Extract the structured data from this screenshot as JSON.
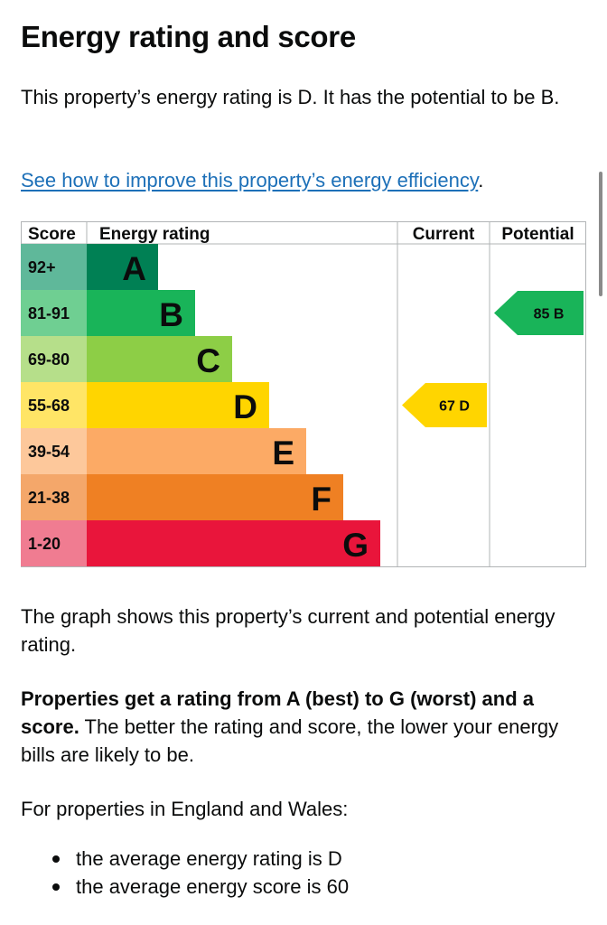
{
  "heading": "Energy rating and score",
  "intro": "This property’s energy rating is D. It has the potential to be B.",
  "improve_link": "See how to improve this property’s energy efficiency",
  "improve_link_suffix": ".",
  "chart_data": {
    "type": "bar",
    "columns": [
      "Score",
      "Energy rating",
      "Current",
      "Potential"
    ],
    "bands": [
      {
        "score": "92+",
        "letter": "A",
        "color": "#008054",
        "score_color": "#5fb89a"
      },
      {
        "score": "81-91",
        "letter": "B",
        "color": "#19b459",
        "score_color": "#6fcf92"
      },
      {
        "score": "69-80",
        "letter": "C",
        "color": "#8dce46",
        "score_color": "#b6df8a"
      },
      {
        "score": "55-68",
        "letter": "D",
        "color": "#ffd500",
        "score_color": "#ffe566"
      },
      {
        "score": "39-54",
        "letter": "E",
        "color": "#fcaa65",
        "score_color": "#fdc89b"
      },
      {
        "score": "21-38",
        "letter": "F",
        "color": "#ef8023",
        "score_color": "#f4a76a"
      },
      {
        "score": "1-20",
        "letter": "G",
        "color": "#e9153b",
        "score_color": "#f07c91"
      }
    ],
    "current": {
      "score": 67,
      "letter": "D",
      "label": "67  D",
      "color": "#ffd500"
    },
    "potential": {
      "score": 85,
      "letter": "B",
      "label": "85  B",
      "color": "#19b459"
    }
  },
  "graph_text": "The graph shows this property’s current and potential energy rating.",
  "rating_bold": "Properties get a rating from A (best) to G (worst) and a score.",
  "rating_rest": " The better the rating and score, the lower your energy bills are likely to be.",
  "region_text": "For properties in England and Wales:",
  "averages": [
    "the average energy rating is D",
    "the average energy score is 60"
  ]
}
